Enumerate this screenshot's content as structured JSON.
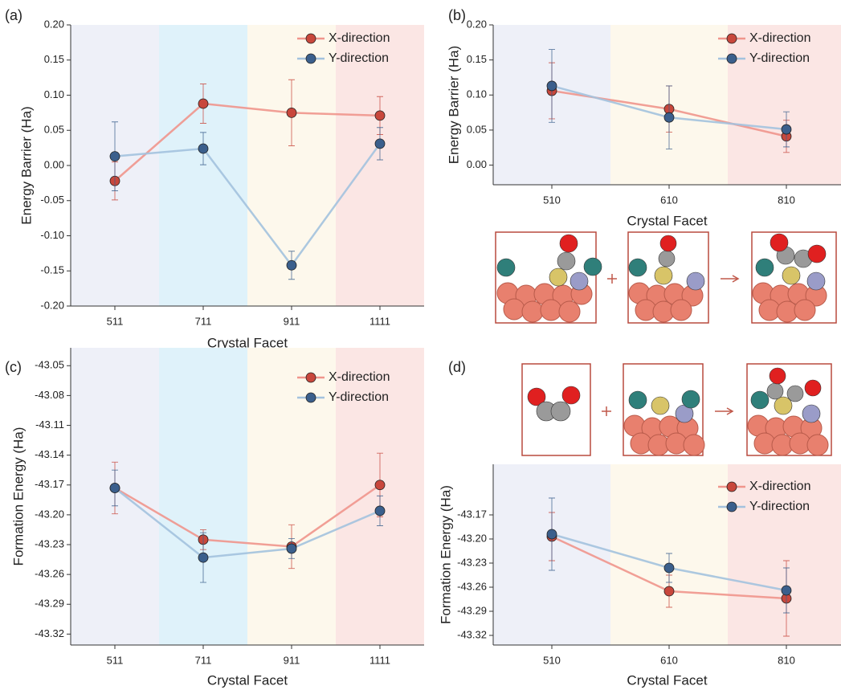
{
  "chart_data": [
    {
      "type": "line",
      "panel_label": "(a)",
      "x_label": "Crystal Facet",
      "y_label": "Energy Barrier (Ha)",
      "categories": [
        "511",
        "711",
        "911",
        "1111"
      ],
      "band_colors": [
        "#eef0f8",
        "#dff2fa",
        "#fdf8ec",
        "#fbe6e4"
      ],
      "series": [
        {
          "name": "X-direction",
          "color": "#f0958c",
          "marker_color": "#c8473c",
          "values": [
            -0.022,
            0.088,
            0.075,
            0.071
          ],
          "errors": [
            0.027,
            0.028,
            0.047,
            0.027
          ]
        },
        {
          "name": "Y-direction",
          "color": "#a3c2de",
          "marker_color": "#3b5f8c",
          "values": [
            0.013,
            0.024,
            -0.142,
            0.031
          ],
          "errors": [
            0.049,
            0.023,
            0.02,
            0.023
          ]
        }
      ],
      "ylim": [
        -0.2,
        0.2
      ],
      "yticks": [
        {
          "value": 0.2,
          "label": "0.20"
        },
        0.15,
        {
          "value": 0.1,
          "label": "0.10"
        },
        0.05,
        {
          "value": 0,
          "label": "0.00"
        },
        -0.05,
        {
          "value": -0.1,
          "label": "-0.10"
        },
        -0.15,
        {
          "value": -0.2,
          "label": "-0.20"
        }
      ],
      "legend": "upper right"
    },
    {
      "type": "line",
      "panel_label": "(b)",
      "x_label": "Crystal Facet",
      "y_label": "Energy Barrier (Ha)",
      "categories": [
        "510",
        "610",
        "810"
      ],
      "band_colors": [
        "#eef0f8",
        "#fdf8ec",
        "#fbe6e4"
      ],
      "series": [
        {
          "name": "X-direction",
          "color": "#f0958c",
          "marker_color": "#c8473c",
          "values": [
            0.106,
            0.08,
            0.041
          ],
          "errors": [
            0.04,
            0.033,
            0.023
          ]
        },
        {
          "name": "Y-direction",
          "color": "#a3c2de",
          "marker_color": "#3b5f8c",
          "values": [
            0.113,
            0.068,
            0.051
          ],
          "errors": [
            0.052,
            0.045,
            0.025
          ]
        }
      ],
      "ylim": [
        -0.028,
        0.2
      ],
      "yticks": [
        {
          "value": 0.2,
          "label": "0.20"
        },
        0.15,
        {
          "value": 0.1,
          "label": "0.10"
        },
        0.05,
        {
          "value": 0,
          "label": "0.00"
        }
      ],
      "legend": "upper right"
    },
    {
      "type": "line",
      "panel_label": "(c)",
      "x_label": "Crystal Facet",
      "y_label": "Formation Energy (Ha)",
      "categories": [
        "511",
        "711",
        "911",
        "1111"
      ],
      "band_colors": [
        "#eef0f8",
        "#dff2fa",
        "#fdf8ec",
        "#fbe6e4"
      ],
      "series": [
        {
          "name": "X-direction",
          "color": "#f0958c",
          "marker_color": "#c8473c",
          "values": [
            -43.173,
            -43.225,
            -43.232,
            -43.17
          ],
          "errors": [
            0.026,
            0.01,
            0.022,
            0.032
          ]
        },
        {
          "name": "Y-direction",
          "color": "#a3c2de",
          "marker_color": "#3b5f8c",
          "values": [
            -43.173,
            -43.243,
            -43.234,
            -43.196
          ],
          "errors": [
            0.018,
            0.025,
            0.01,
            0.015
          ]
        }
      ],
      "ylim": [
        -43.331,
        -43.032
      ],
      "yticks": [
        -43.05,
        -43.08,
        -43.11,
        -43.14,
        -43.17,
        {
          "value": -43.2,
          "label": "-43.20"
        },
        -43.23,
        -43.26,
        -43.29,
        -43.32
      ],
      "legend": "upper right"
    },
    {
      "type": "line",
      "panel_label": "(d)",
      "x_label": "Crystal Facet",
      "y_label": "Formation Energy (Ha)",
      "categories": [
        "510",
        "610",
        "810"
      ],
      "band_colors": [
        "#eef0f8",
        "#fdf8ec",
        "#fbe6e4"
      ],
      "series": [
        {
          "name": "X-direction",
          "color": "#f0958c",
          "marker_color": "#c8473c",
          "values": [
            -43.197,
            -43.265,
            -43.274
          ],
          "errors": [
            0.03,
            0.02,
            0.047
          ]
        },
        {
          "name": "Y-direction",
          "color": "#a3c2de",
          "marker_color": "#3b5f8c",
          "values": [
            -43.194,
            -43.236,
            -43.264
          ],
          "errors": [
            0.045,
            0.018,
            0.028
          ]
        }
      ],
      "ylim": [
        -43.332,
        -43.107
      ],
      "yticks": [
        -43.17,
        {
          "value": -43.2,
          "label": "-43.20"
        },
        -43.23,
        -43.26,
        -43.29,
        -43.32
      ],
      "legend": "upper right"
    }
  ]
}
